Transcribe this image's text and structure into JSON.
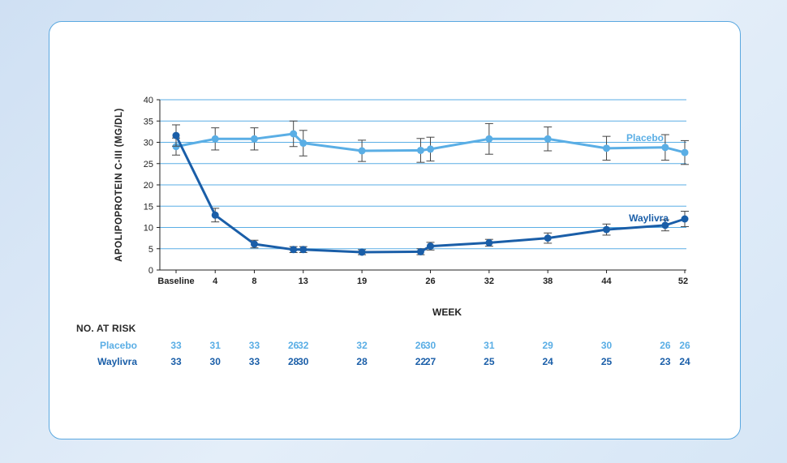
{
  "colors": {
    "placebo": "#5aaee5",
    "waylivra": "#1a5ea8",
    "grid": "#5aaee5",
    "axis": "#222222"
  },
  "chart_data": {
    "type": "line",
    "xlabel": "WEEK",
    "ylabel": "APOLIPOPROTEIN C-III (MG/DL)",
    "ylim": [
      0,
      40
    ],
    "yticks": [
      0,
      5,
      10,
      15,
      20,
      25,
      30,
      35,
      40
    ],
    "xlim": [
      0,
      52
    ],
    "xticks": [
      {
        "value": 0,
        "label": "Baseline"
      },
      {
        "value": 4,
        "label": "4"
      },
      {
        "value": 8,
        "label": "8"
      },
      {
        "value": 13,
        "label": "13"
      },
      {
        "value": 19,
        "label": "19"
      },
      {
        "value": 26,
        "label": "26"
      },
      {
        "value": 32,
        "label": "32"
      },
      {
        "value": 38,
        "label": "38"
      },
      {
        "value": 44,
        "label": "44"
      },
      {
        "value": 52,
        "label": "52"
      }
    ],
    "grid": true,
    "series": [
      {
        "name": "Placebo",
        "color": "#5aaee5",
        "x": [
          0,
          4,
          8,
          12,
          13,
          19,
          25,
          26,
          32,
          38,
          44,
          50,
          52
        ],
        "y": [
          29,
          30.8,
          30.8,
          32,
          29.8,
          28,
          28.1,
          28.4,
          30.8,
          30.8,
          28.6,
          28.8,
          27.6
        ],
        "err": [
          2,
          2.6,
          2.6,
          3,
          3,
          2.5,
          2.8,
          2.8,
          3.6,
          2.8,
          2.8,
          3,
          2.8
        ]
      },
      {
        "name": "Waylivra",
        "color": "#1a5ea8",
        "x": [
          0,
          4,
          8,
          12,
          13,
          19,
          25,
          26,
          32,
          38,
          44,
          50,
          52
        ],
        "y": [
          31.6,
          12.9,
          6.1,
          4.8,
          4.8,
          4.2,
          4.3,
          5.6,
          6.4,
          7.5,
          9.5,
          10.5,
          12
        ],
        "err": [
          2.5,
          1.6,
          0.9,
          0.7,
          0.7,
          0.6,
          0.7,
          0.9,
          0.8,
          1.2,
          1.3,
          1.3,
          1.8
        ]
      }
    ]
  },
  "risk_table": {
    "title": "NO. AT RISK",
    "rows": [
      {
        "label": "Placebo",
        "color": "#5aaee5",
        "x": [
          0,
          4,
          8,
          12,
          13,
          19,
          25,
          26,
          32,
          38,
          44,
          50,
          52
        ],
        "values": [
          "33",
          "31",
          "33",
          "26",
          "32",
          "32",
          "26",
          "30",
          "31",
          "29",
          "30",
          "26",
          "26"
        ]
      },
      {
        "label": "Waylivra",
        "color": "#1a5ea8",
        "x": [
          0,
          4,
          8,
          12,
          13,
          19,
          25,
          26,
          32,
          38,
          44,
          50,
          52
        ],
        "values": [
          "33",
          "30",
          "33",
          "28",
          "30",
          "28",
          "22",
          "27",
          "25",
          "24",
          "25",
          "23",
          "24"
        ]
      }
    ]
  }
}
